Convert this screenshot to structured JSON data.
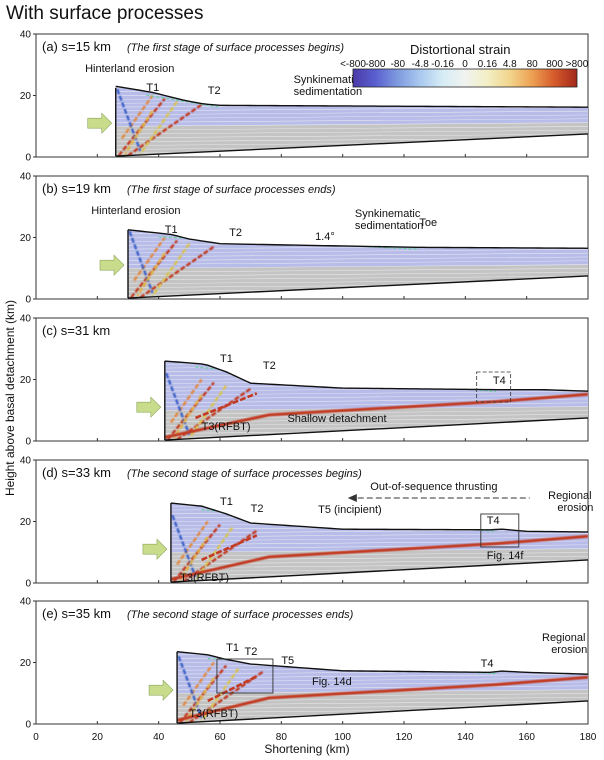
{
  "title": "With surface processes",
  "y_axis_label": "Height above basal detachment (km)",
  "x_axis_label": "Shortening (km)",
  "x_ticks": [
    "0",
    "20",
    "40",
    "60",
    "80",
    "100",
    "120",
    "140",
    "160",
    "180"
  ],
  "y_ticks": [
    "0",
    "20",
    "40"
  ],
  "colorbar": {
    "title": "Distortional strain",
    "labels": [
      "<-800",
      "-800",
      "-80",
      "-4.8",
      "-0.16",
      "0",
      "0.16",
      "4.8",
      "80",
      "800",
      ">800"
    ],
    "colors": [
      "#4b3aa8",
      "#5a5fd0",
      "#7f9bdf",
      "#a9c9ef",
      "#d6ecf5",
      "#f0f3f0",
      "#f3efc5",
      "#f1d58c",
      "#ed9f52",
      "#d55a2b",
      "#a1281b"
    ]
  },
  "colors": {
    "strain_red": "#c23a22",
    "strain_blue": "#3f63c8",
    "layer_blue": "#b7bce9",
    "layer_grey": "#c4c4c4",
    "arrow_green": "#c9dc8c"
  },
  "panels": [
    {
      "tag": "(a) s=15 km",
      "note": "(The first stage of surface processes begins)",
      "annotations": [
        {
          "key": "hinterland",
          "text": "Hinterland erosion"
        },
        {
          "key": "t1",
          "text": "T1"
        },
        {
          "key": "t2",
          "text": "T2"
        },
        {
          "key": "synk1",
          "text": "Synkinematic"
        },
        {
          "key": "synk2",
          "text": "sedimentation"
        }
      ]
    },
    {
      "tag": "(b) s=19 km",
      "note": "(The first stage of surface processes ends)",
      "annotations": [
        {
          "key": "hinterland",
          "text": "Hinterland erosion"
        },
        {
          "key": "t1",
          "text": "T1"
        },
        {
          "key": "t2",
          "text": "T2"
        },
        {
          "key": "angle",
          "text": "1.4°"
        },
        {
          "key": "synk1",
          "text": "Synkinematic"
        },
        {
          "key": "synk2",
          "text": "sedimentation"
        },
        {
          "key": "toe",
          "text": "Toe"
        }
      ]
    },
    {
      "tag": "(c) s=31 km",
      "note": "",
      "annotations": [
        {
          "key": "t1",
          "text": "T1"
        },
        {
          "key": "t2",
          "text": "T2"
        },
        {
          "key": "t4",
          "text": "T4"
        },
        {
          "key": "t3",
          "text": "T3(RFBT)"
        },
        {
          "key": "shallow",
          "text": "Shallow detachment"
        }
      ]
    },
    {
      "tag": "(d) s=33 km",
      "note": "(The second stage of surface processes begins)",
      "annotations": [
        {
          "key": "t1",
          "text": "T1"
        },
        {
          "key": "t2",
          "text": "T2"
        },
        {
          "key": "oos",
          "text": "Out-of-sequence thrusting"
        },
        {
          "key": "t5",
          "text": "T5 (incipient)"
        },
        {
          "key": "t4",
          "text": "T4"
        },
        {
          "key": "regional1",
          "text": "Regional"
        },
        {
          "key": "regional2",
          "text": "erosion"
        },
        {
          "key": "fig",
          "text": "Fig. 14f"
        },
        {
          "key": "t3",
          "text": "T3(RFBT)"
        }
      ]
    },
    {
      "tag": "(e) s=35 km",
      "note": "(The second stage of surface processes ends)",
      "annotations": [
        {
          "key": "t1",
          "text": "T1"
        },
        {
          "key": "t2",
          "text": "T2"
        },
        {
          "key": "t5",
          "text": "T5"
        },
        {
          "key": "t4",
          "text": "T4"
        },
        {
          "key": "regional1",
          "text": "Regional"
        },
        {
          "key": "regional2",
          "text": "erosion"
        },
        {
          "key": "fig",
          "text": "Fig. 14d"
        },
        {
          "key": "t3",
          "text": "T3(RFBT)"
        }
      ]
    }
  ]
}
